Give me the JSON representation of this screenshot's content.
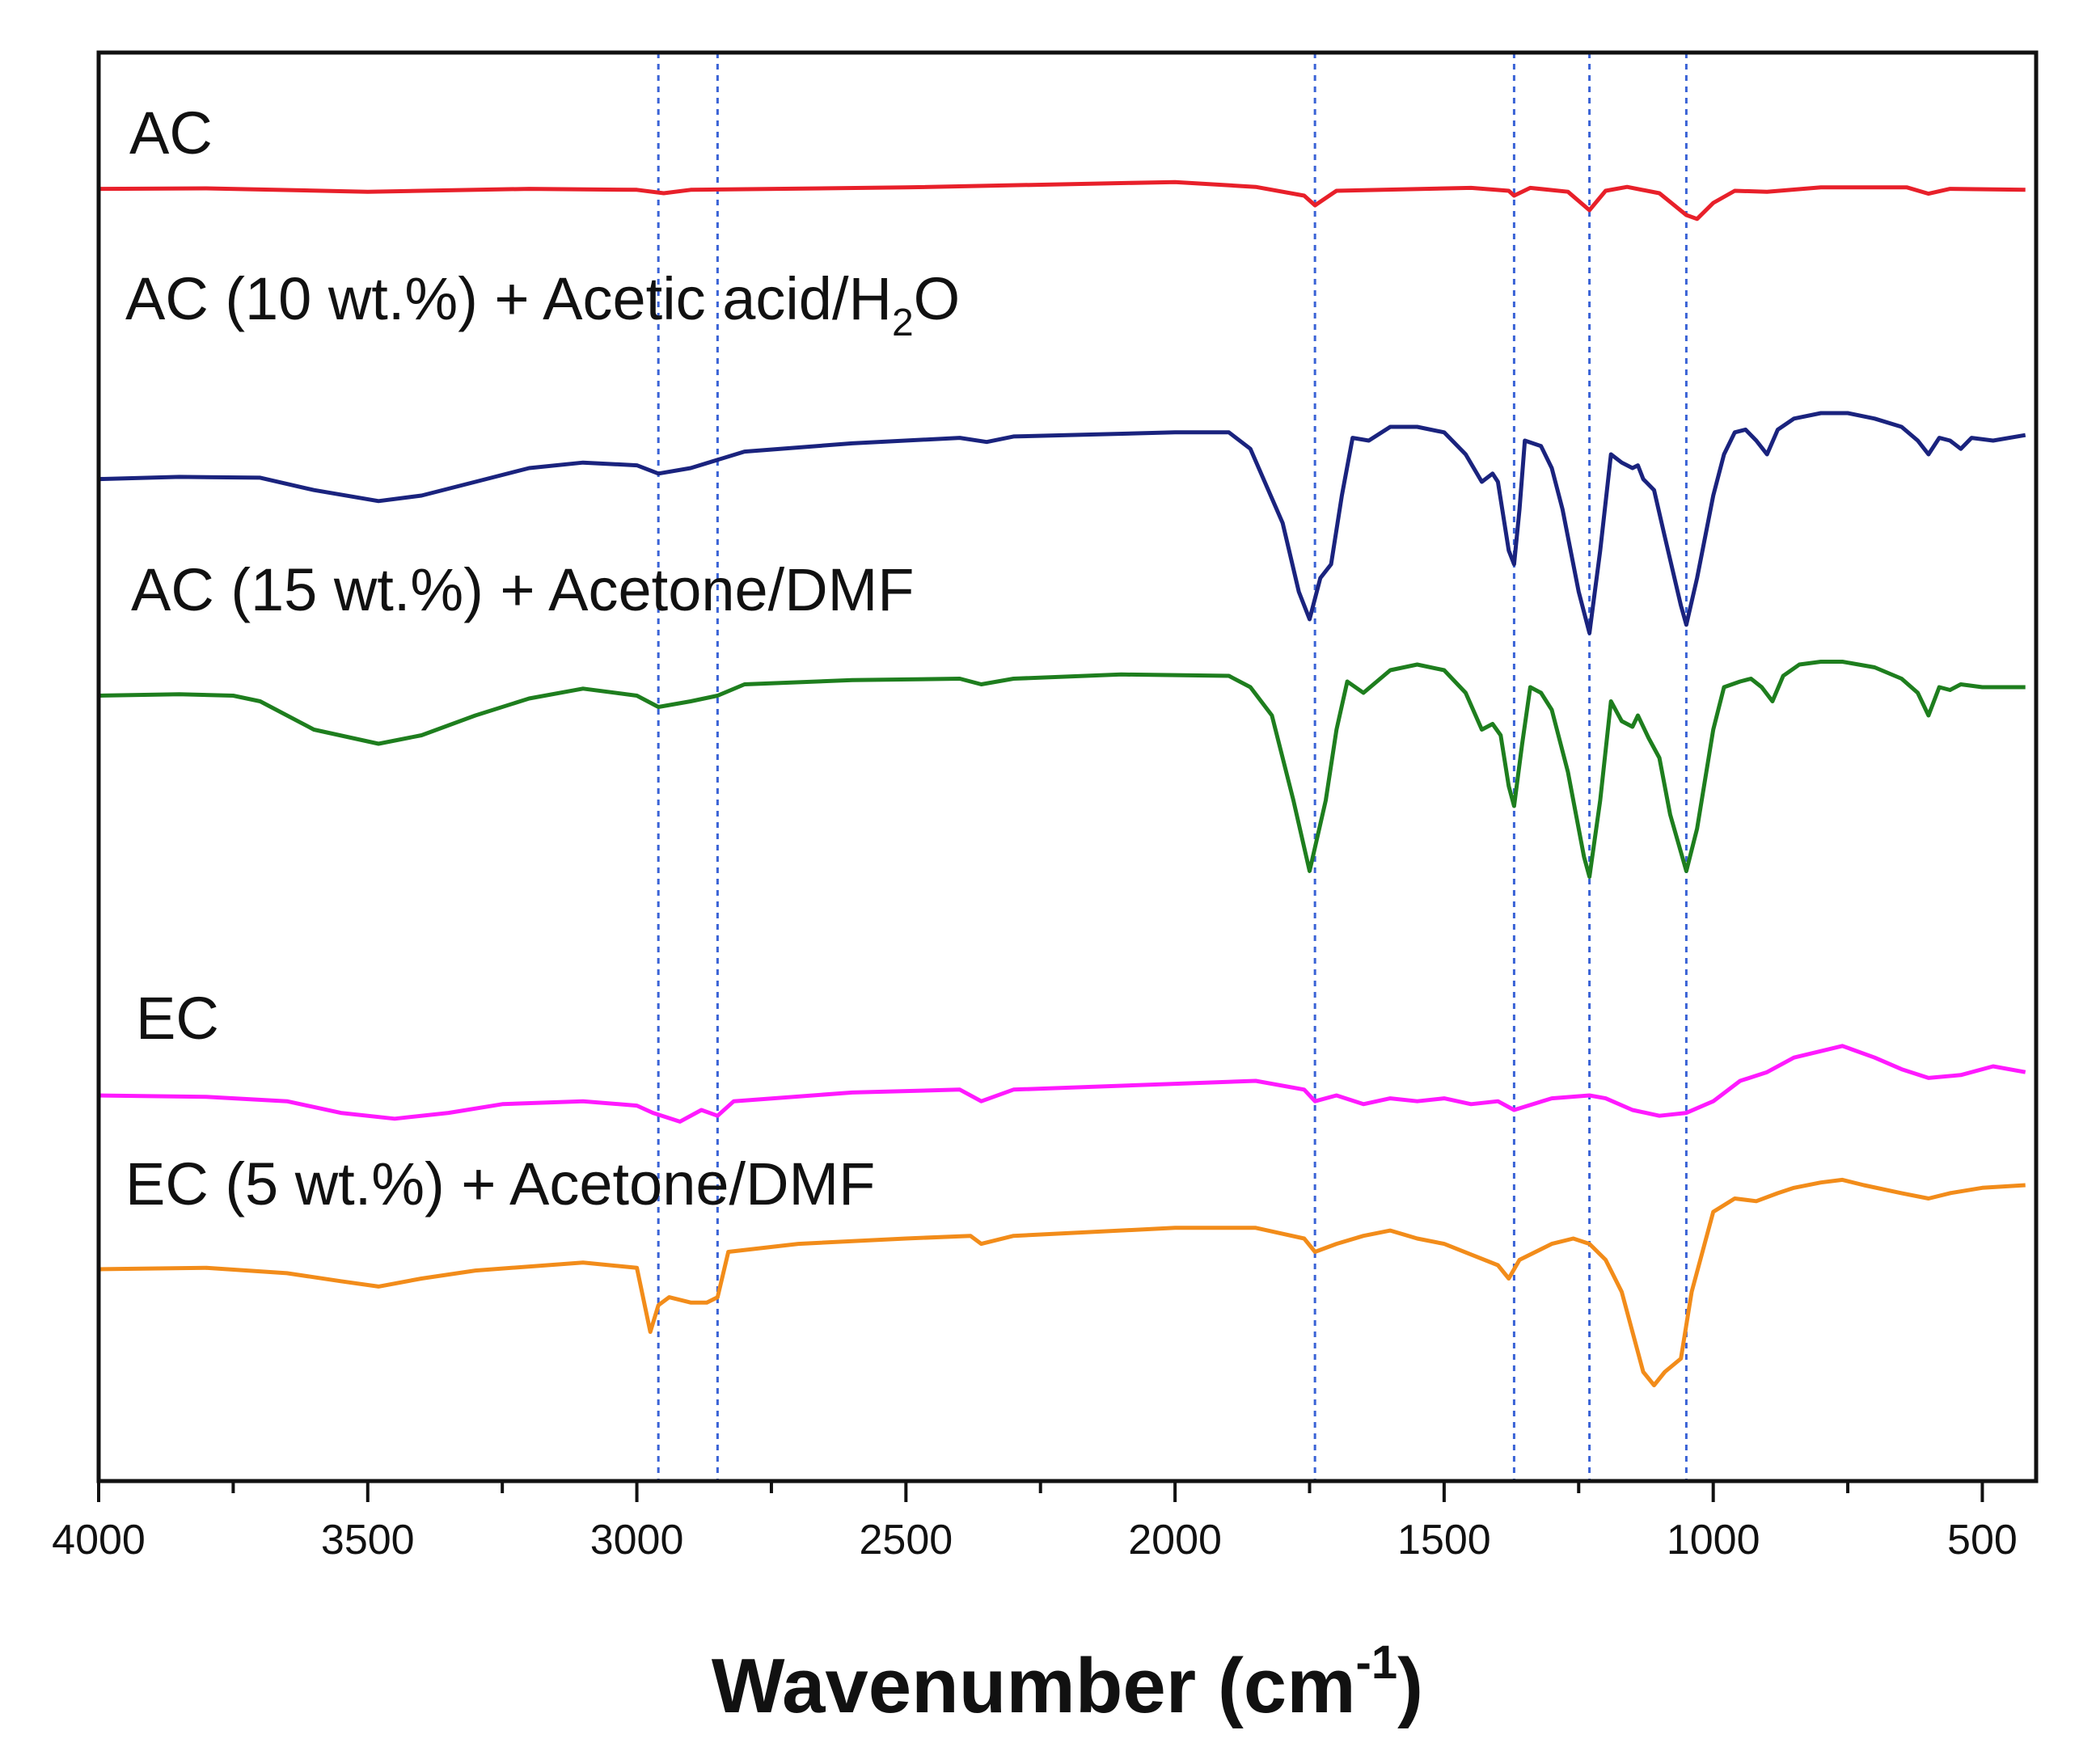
{
  "chart_data": {
    "type": "line",
    "title": "",
    "xlabel": "Wavenumber (cm",
    "xlabel_sup": "-1",
    "xlabel_suffix": ")",
    "ylabel": "",
    "xlim": [
      4000,
      400
    ],
    "x_reversed": true,
    "y_ticks_shown": false,
    "x_ticks": [
      4000,
      3500,
      3000,
      2500,
      2000,
      1500,
      1000,
      500
    ],
    "x_tick_labels": [
      "4000",
      "3500",
      "3000",
      "2500",
      "2000",
      "1500",
      "1000",
      "500"
    ],
    "reference_lines": [
      2960,
      2850,
      1740,
      1370,
      1230,
      1050
    ],
    "reference_line_color": "#3a63d6",
    "series": [
      {
        "name": "AC",
        "label_text": "AC",
        "color": "#e8202a",
        "points": [
          [
            4000,
            0.6
          ],
          [
            3800,
            0.5
          ],
          [
            3500,
            1.2
          ],
          [
            3200,
            0.6
          ],
          [
            3000,
            0.8
          ],
          [
            2950,
            1.5
          ],
          [
            2900,
            0.8
          ],
          [
            2500,
            0.3
          ],
          [
            2000,
            -0.8
          ],
          [
            1850,
            0.2
          ],
          [
            1760,
            2.0
          ],
          [
            1740,
            4.0
          ],
          [
            1700,
            1.0
          ],
          [
            1450,
            0.4
          ],
          [
            1380,
            1.0
          ],
          [
            1370,
            2.0
          ],
          [
            1340,
            0.4
          ],
          [
            1270,
            1.2
          ],
          [
            1230,
            5.0
          ],
          [
            1200,
            1.0
          ],
          [
            1160,
            0.2
          ],
          [
            1100,
            1.5
          ],
          [
            1050,
            6.0
          ],
          [
            1030,
            6.8
          ],
          [
            1000,
            3.5
          ],
          [
            960,
            1.0
          ],
          [
            900,
            1.2
          ],
          [
            800,
            0.3
          ],
          [
            640,
            0.3
          ],
          [
            600,
            1.6
          ],
          [
            560,
            0.6
          ],
          [
            420,
            0.8
          ]
        ]
      },
      {
        "name": "AC (10 wt.%) + Acetic acid/H2O",
        "label_text": "AC (10 wt.%) + Acetic acid/H",
        "label_sub": "2",
        "label_tail": "O",
        "color": "#1a237e",
        "points": [
          [
            4000,
            14.0
          ],
          [
            3850,
            13.2
          ],
          [
            3700,
            13.5
          ],
          [
            3600,
            18.0
          ],
          [
            3480,
            22.0
          ],
          [
            3400,
            20.0
          ],
          [
            3300,
            15.0
          ],
          [
            3200,
            10.0
          ],
          [
            3100,
            8.0
          ],
          [
            3000,
            9.0
          ],
          [
            2960,
            12.0
          ],
          [
            2900,
            10.0
          ],
          [
            2850,
            7.0
          ],
          [
            2800,
            4.0
          ],
          [
            2600,
            1.0
          ],
          [
            2400,
            -1.0
          ],
          [
            2350,
            0.5
          ],
          [
            2300,
            -1.5
          ],
          [
            2000,
            -3.0
          ],
          [
            1900,
            -3.0
          ],
          [
            1860,
            3.0
          ],
          [
            1800,
            30.0
          ],
          [
            1770,
            55.0
          ],
          [
            1750,
            65.0
          ],
          [
            1730,
            50.0
          ],
          [
            1710,
            45.0
          ],
          [
            1690,
            20.0
          ],
          [
            1670,
            -1.0
          ],
          [
            1640,
            0.0
          ],
          [
            1600,
            -5.0
          ],
          [
            1550,
            -5.0
          ],
          [
            1500,
            -3.0
          ],
          [
            1460,
            5.0
          ],
          [
            1430,
            15.0
          ],
          [
            1410,
            12.0
          ],
          [
            1400,
            15.0
          ],
          [
            1380,
            40.0
          ],
          [
            1370,
            45.0
          ],
          [
            1360,
            25.0
          ],
          [
            1350,
            0.0
          ],
          [
            1320,
            2.0
          ],
          [
            1300,
            10.0
          ],
          [
            1280,
            25.0
          ],
          [
            1250,
            55.0
          ],
          [
            1230,
            70.0
          ],
          [
            1210,
            40.0
          ],
          [
            1190,
            5.0
          ],
          [
            1170,
            8.0
          ],
          [
            1150,
            10.0
          ],
          [
            1140,
            9.0
          ],
          [
            1130,
            14.0
          ],
          [
            1110,
            18.0
          ],
          [
            1090,
            35.0
          ],
          [
            1060,
            60.0
          ],
          [
            1050,
            67.0
          ],
          [
            1030,
            50.0
          ],
          [
            1000,
            20.0
          ],
          [
            980,
            5.0
          ],
          [
            960,
            -3.0
          ],
          [
            940,
            -4.0
          ],
          [
            920,
            0.0
          ],
          [
            900,
            5.0
          ],
          [
            880,
            -4.0
          ],
          [
            850,
            -8.0
          ],
          [
            800,
            -10.0
          ],
          [
            750,
            -10.0
          ],
          [
            700,
            -8.0
          ],
          [
            650,
            -5.0
          ],
          [
            620,
            0.0
          ],
          [
            600,
            5.0
          ],
          [
            580,
            -1.0
          ],
          [
            560,
            0.0
          ],
          [
            540,
            3.0
          ],
          [
            520,
            -1.0
          ],
          [
            480,
            0.0
          ],
          [
            420,
            -2.0
          ]
        ]
      },
      {
        "name": "AC (15 wt.%) + Acetone/DMF",
        "label_text": "AC (15 wt.%) + Acetone/DMF",
        "color": "#1e7e1e",
        "points": [
          [
            4000,
            3.0
          ],
          [
            3850,
            2.5
          ],
          [
            3750,
            3.0
          ],
          [
            3700,
            5.0
          ],
          [
            3600,
            15.0
          ],
          [
            3480,
            20.0
          ],
          [
            3400,
            17.0
          ],
          [
            3300,
            10.0
          ],
          [
            3200,
            4.0
          ],
          [
            3100,
            0.5
          ],
          [
            3000,
            3.0
          ],
          [
            2960,
            7.0
          ],
          [
            2900,
            5.0
          ],
          [
            2850,
            3.0
          ],
          [
            2800,
            -1.0
          ],
          [
            2600,
            -2.5
          ],
          [
            2400,
            -3.0
          ],
          [
            2360,
            -1.0
          ],
          [
            2300,
            -3.0
          ],
          [
            2100,
            -4.5
          ],
          [
            1900,
            -4.0
          ],
          [
            1860,
            0.0
          ],
          [
            1820,
            10.0
          ],
          [
            1780,
            40.0
          ],
          [
            1750,
            65.0
          ],
          [
            1720,
            40.0
          ],
          [
            1700,
            15.0
          ],
          [
            1680,
            -2.0
          ],
          [
            1650,
            2.0
          ],
          [
            1600,
            -6.0
          ],
          [
            1550,
            -8.0
          ],
          [
            1500,
            -6.0
          ],
          [
            1460,
            2.0
          ],
          [
            1430,
            15.0
          ],
          [
            1410,
            13.0
          ],
          [
            1395,
            17.0
          ],
          [
            1380,
            35.0
          ],
          [
            1370,
            42.0
          ],
          [
            1355,
            20.0
          ],
          [
            1340,
            0.0
          ],
          [
            1320,
            2.0
          ],
          [
            1300,
            8.0
          ],
          [
            1270,
            30.0
          ],
          [
            1240,
            60.0
          ],
          [
            1230,
            67.0
          ],
          [
            1210,
            40.0
          ],
          [
            1190,
            5.0
          ],
          [
            1170,
            12.0
          ],
          [
            1150,
            14.0
          ],
          [
            1140,
            10.0
          ],
          [
            1120,
            18.0
          ],
          [
            1100,
            25.0
          ],
          [
            1080,
            45.0
          ],
          [
            1050,
            65.0
          ],
          [
            1030,
            50.0
          ],
          [
            1000,
            15.0
          ],
          [
            980,
            0.0
          ],
          [
            950,
            -2.0
          ],
          [
            930,
            -3.0
          ],
          [
            910,
            0.0
          ],
          [
            890,
            5.0
          ],
          [
            870,
            -4.0
          ],
          [
            840,
            -8.0
          ],
          [
            800,
            -9.0
          ],
          [
            760,
            -9.0
          ],
          [
            700,
            -7.0
          ],
          [
            650,
            -3.0
          ],
          [
            620,
            2.0
          ],
          [
            600,
            10.0
          ],
          [
            580,
            0.0
          ],
          [
            560,
            1.0
          ],
          [
            540,
            -1.0
          ],
          [
            500,
            0.0
          ],
          [
            420,
            0.0
          ]
        ]
      },
      {
        "name": "EC",
        "label_text": "EC",
        "color": "#ff1aff",
        "points": [
          [
            4000,
            0.0
          ],
          [
            3800,
            0.5
          ],
          [
            3650,
            2.0
          ],
          [
            3550,
            6.0
          ],
          [
            3450,
            8.0
          ],
          [
            3350,
            6.0
          ],
          [
            3250,
            3.0
          ],
          [
            3100,
            2.0
          ],
          [
            3000,
            3.5
          ],
          [
            2970,
            6.0
          ],
          [
            2920,
            9.0
          ],
          [
            2880,
            5.0
          ],
          [
            2850,
            7.0
          ],
          [
            2820,
            2.0
          ],
          [
            2600,
            -1.0
          ],
          [
            2400,
            -2.0
          ],
          [
            2360,
            2.0
          ],
          [
            2300,
            -2.0
          ],
          [
            2000,
            -4.0
          ],
          [
            1850,
            -5.0
          ],
          [
            1760,
            -2.0
          ],
          [
            1740,
            2.0
          ],
          [
            1700,
            0.0
          ],
          [
            1650,
            3.0
          ],
          [
            1600,
            1.0
          ],
          [
            1550,
            2.0
          ],
          [
            1500,
            1.0
          ],
          [
            1450,
            3.0
          ],
          [
            1400,
            2.0
          ],
          [
            1370,
            5.0
          ],
          [
            1300,
            1.0
          ],
          [
            1230,
            0.0
          ],
          [
            1200,
            1.0
          ],
          [
            1150,
            5.0
          ],
          [
            1100,
            7.0
          ],
          [
            1050,
            6.0
          ],
          [
            1000,
            2.0
          ],
          [
            950,
            -5.0
          ],
          [
            900,
            -8.0
          ],
          [
            850,
            -13.0
          ],
          [
            760,
            -17.0
          ],
          [
            700,
            -13.0
          ],
          [
            650,
            -9.0
          ],
          [
            600,
            -6.0
          ],
          [
            540,
            -7.0
          ],
          [
            480,
            -10.0
          ],
          [
            420,
            -8.0
          ]
        ]
      },
      {
        "name": "EC (5 wt.%) + Acetone/DMF",
        "label_text": "EC (5 wt.%) + Acetone/DMF",
        "color": "#f28c1a",
        "points": [
          [
            4000,
            1.5
          ],
          [
            3800,
            1.0
          ],
          [
            3650,
            3.0
          ],
          [
            3550,
            6.0
          ],
          [
            3480,
            8.0
          ],
          [
            3400,
            5.0
          ],
          [
            3300,
            2.0
          ],
          [
            3100,
            -1.0
          ],
          [
            3000,
            1.0
          ],
          [
            2975,
            25.0
          ],
          [
            2960,
            15.0
          ],
          [
            2940,
            12.0
          ],
          [
            2900,
            14.0
          ],
          [
            2870,
            14.0
          ],
          [
            2850,
            12.0
          ],
          [
            2830,
            -5.0
          ],
          [
            2700,
            -8.0
          ],
          [
            2500,
            -10.0
          ],
          [
            2380,
            -11.0
          ],
          [
            2360,
            -8.0
          ],
          [
            2300,
            -11.0
          ],
          [
            2000,
            -14.0
          ],
          [
            1850,
            -14.0
          ],
          [
            1760,
            -10.0
          ],
          [
            1740,
            -5.0
          ],
          [
            1700,
            -8.0
          ],
          [
            1650,
            -11.0
          ],
          [
            1600,
            -13.0
          ],
          [
            1550,
            -10.0
          ],
          [
            1500,
            -8.0
          ],
          [
            1450,
            -4.0
          ],
          [
            1400,
            0.0
          ],
          [
            1380,
            5.0
          ],
          [
            1360,
            -2.0
          ],
          [
            1300,
            -8.0
          ],
          [
            1260,
            -10.0
          ],
          [
            1230,
            -8.0
          ],
          [
            1200,
            -2.0
          ],
          [
            1170,
            10.0
          ],
          [
            1150,
            25.0
          ],
          [
            1130,
            40.0
          ],
          [
            1110,
            45.0
          ],
          [
            1090,
            40.0
          ],
          [
            1060,
            35.0
          ],
          [
            1040,
            10.0
          ],
          [
            1000,
            -20.0
          ],
          [
            960,
            -25.0
          ],
          [
            920,
            -24.0
          ],
          [
            880,
            -27.0
          ],
          [
            850,
            -29.0
          ],
          [
            800,
            -31.0
          ],
          [
            760,
            -32.0
          ],
          [
            720,
            -30.0
          ],
          [
            650,
            -27.0
          ],
          [
            600,
            -25.0
          ],
          [
            560,
            -27.0
          ],
          [
            500,
            -29.0
          ],
          [
            420,
            -30.0
          ]
        ]
      }
    ]
  }
}
